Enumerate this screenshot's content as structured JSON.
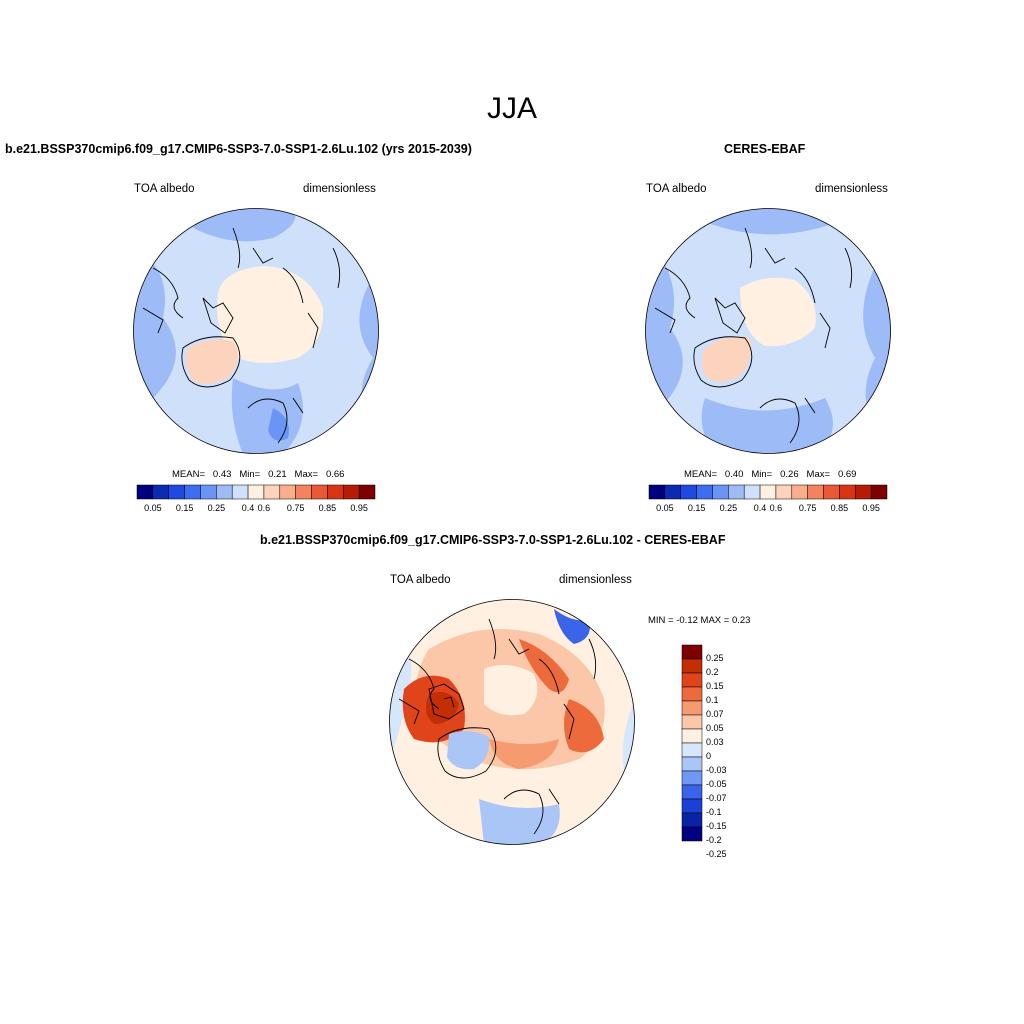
{
  "figure": {
    "title": "JJA"
  },
  "colors": {
    "abs_levels": [
      "#00007f",
      "#0c2ab3",
      "#1d4be0",
      "#3b6ef0",
      "#6a95f5",
      "#9dbbf6",
      "#cfe0fb",
      "#fff0e2",
      "#fcd3bc",
      "#f9ae8c",
      "#f4825d",
      "#ea5834",
      "#d93513",
      "#b61c05",
      "#7f0000"
    ],
    "diff_levels": [
      "#000080",
      "#0a22a6",
      "#1a40d6",
      "#3a64ea",
      "#6f97f3",
      "#a9c6f7",
      "#d7e7fb",
      "#fff0e2",
      "#fbc7a8",
      "#f69b6f",
      "#ed6a3c",
      "#e0441a",
      "#c42e05",
      "#7f0000"
    ],
    "coastline": "#000000"
  },
  "panels": [
    {
      "id": "model",
      "title": "b.e21.BSSP370cmip6.f09_g17.CMIP6-SSP3-7.0-SSP1-2.6Lu.102 (yrs 2015-2039)",
      "left_label": "TOA albedo",
      "right_label": "dimensionless",
      "stats": {
        "mean_label": "MEAN=",
        "mean": "0.43",
        "min_label": "Min=",
        "min": "0.21",
        "max_label": "Max=",
        "max": "0.66"
      },
      "colorbar_ticks": [
        "0.05",
        "0.15",
        "0.25",
        "0.4",
        "0.6",
        "0.75",
        "0.85",
        "0.95"
      ]
    },
    {
      "id": "obs",
      "title": "CERES-EBAF",
      "left_label": "TOA albedo",
      "right_label": "dimensionless",
      "stats": {
        "mean_label": "MEAN=",
        "mean": "0.40",
        "min_label": "Min=",
        "min": "0.26",
        "max_label": "Max=",
        "max": "0.69"
      },
      "colorbar_ticks": [
        "0.05",
        "0.15",
        "0.25",
        "0.4",
        "0.6",
        "0.75",
        "0.85",
        "0.95"
      ]
    },
    {
      "id": "diff",
      "title": "b.e21.BSSP370cmip6.f09_g17.CMIP6-SSP3-7.0-SSP1-2.6Lu.102 - CERES-EBAF",
      "left_label": "TOA albedo",
      "right_label": "dimensionless",
      "stats": {
        "text": "MIN =  -0.12 MAX =   0.23"
      },
      "colorbar_ticks": [
        "0.25",
        "0.2",
        "0.15",
        "0.1",
        "0.07",
        "0.05",
        "0.03",
        "0",
        "-0.03",
        "-0.05",
        "-0.07",
        "-0.1",
        "-0.15",
        "-0.2",
        "-0.25"
      ]
    }
  ]
}
